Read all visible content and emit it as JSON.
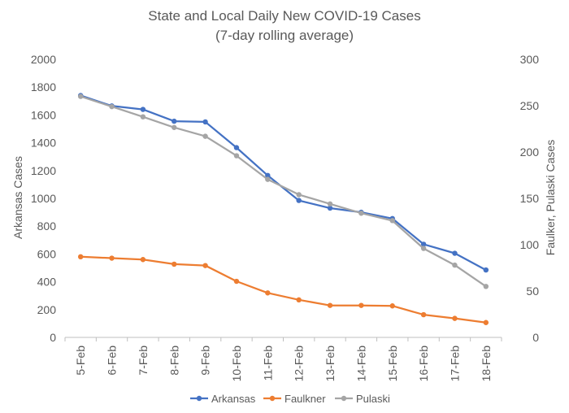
{
  "chart_data": {
    "type": "line",
    "title": "State and Local Daily New COVID-19 Cases",
    "subtitle": "(7-day rolling average)",
    "categories": [
      "5-Feb",
      "6-Feb",
      "7-Feb",
      "8-Feb",
      "9-Feb",
      "10-Feb",
      "11-Feb",
      "12-Feb",
      "13-Feb",
      "14-Feb",
      "15-Feb",
      "16-Feb",
      "17-Feb",
      "18-Feb"
    ],
    "y_left": {
      "label": "Arkansas Cases",
      "min": 0,
      "max": 2000,
      "step": 200,
      "ticks": [
        "0",
        "200",
        "400",
        "600",
        "800",
        "1000",
        "1200",
        "1400",
        "1600",
        "1800",
        "2000"
      ]
    },
    "y_right": {
      "label": "Faulker, Pulaski Cases",
      "min": 0,
      "max": 300,
      "step": 50,
      "ticks": [
        "0",
        "50",
        "100",
        "150",
        "200",
        "250",
        "300"
      ]
    },
    "grid": false,
    "legend_position": "bottom",
    "series": [
      {
        "name": "Arkansas",
        "axis": "left",
        "color": "#4472C4",
        "values": [
          1740,
          1665,
          1640,
          1555,
          1550,
          1365,
          1165,
          985,
          930,
          900,
          855,
          670,
          605,
          485
        ]
      },
      {
        "name": "Faulkner",
        "axis": "right",
        "color": "#ED7D31",
        "values": [
          87,
          85.5,
          84,
          79,
          77.5,
          60.5,
          48,
          40.5,
          34.5,
          34.5,
          34,
          24.5,
          20.5,
          16
        ]
      },
      {
        "name": "Pulaski",
        "axis": "right",
        "color": "#A5A5A5",
        "values": [
          260,
          249,
          238,
          226.5,
          217,
          196,
          170.5,
          154,
          144,
          134,
          126,
          96,
          78,
          55
        ]
      }
    ]
  }
}
